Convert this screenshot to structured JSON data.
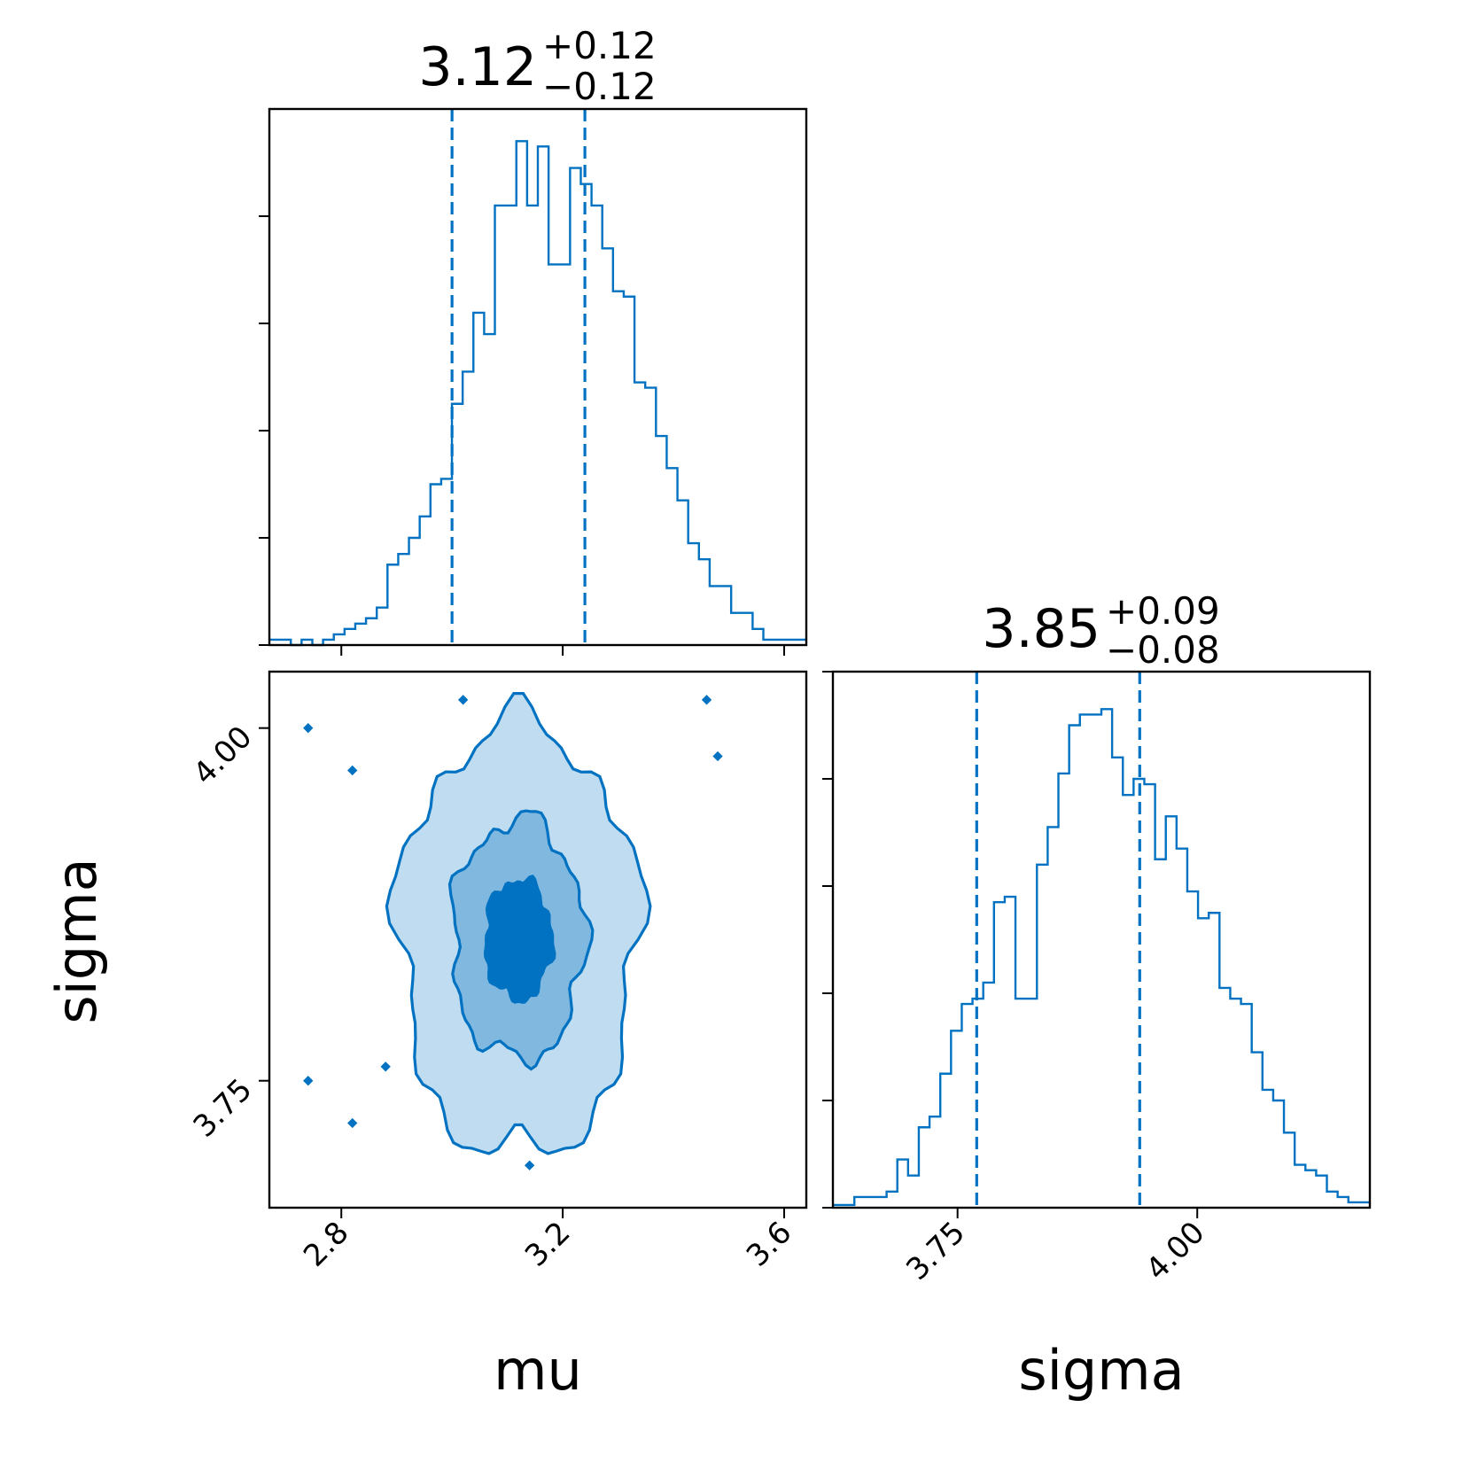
{
  "colors": {
    "primary": "#0072c1",
    "fill_outer": "#bfdcf0",
    "fill_middle": "#80b8df",
    "fill_inner": "#0072c1",
    "axis": "#000000",
    "background": "#ffffff"
  },
  "chart_data": {
    "type": "corner",
    "parameters": [
      "mu",
      "sigma"
    ],
    "panels": [
      {
        "id": "mu-hist",
        "type": "histogram",
        "parameter": "mu",
        "title": {
          "value": "3.12",
          "plus": "+0.12",
          "minus": "−0.12"
        },
        "xlim": [
          2.67,
          3.64
        ],
        "ylim": [
          0,
          1.0
        ],
        "y_ticks": [
          0,
          0.2,
          0.4,
          0.6,
          0.8
        ],
        "x_ticks": [
          2.8,
          3.2,
          3.6
        ],
        "quantile_lines": [
          3.0,
          3.24
        ],
        "bin_edges_start": 2.67,
        "bin_width": 0.0194,
        "counts": [
          0.01,
          0.01,
          0,
          0.01,
          0,
          0.01,
          0.02,
          0.03,
          0.04,
          0.05,
          0.07,
          0.15,
          0.17,
          0.2,
          0.24,
          0.3,
          0.31,
          0.45,
          0.51,
          0.62,
          0.58,
          0.82,
          0.82,
          0.94,
          0.82,
          0.93,
          0.71,
          0.71,
          0.89,
          0.86,
          0.82,
          0.74,
          0.66,
          0.65,
          0.49,
          0.48,
          0.39,
          0.33,
          0.27,
          0.19,
          0.16,
          0.11,
          0.11,
          0.06,
          0.06,
          0.03,
          0.01,
          0.01,
          0.01,
          0.01
        ]
      },
      {
        "id": "sigma-hist",
        "type": "histogram",
        "parameter": "sigma",
        "title": {
          "value": "3.85",
          "plus": "+0.09",
          "minus": "−0.08"
        },
        "xlim": [
          3.62,
          4.18
        ],
        "ylim": [
          0,
          1.0
        ],
        "y_ticks": [
          0,
          0.2,
          0.4,
          0.6,
          0.8,
          1.0
        ],
        "x_ticks": [
          3.75,
          4.0
        ],
        "x_tick_labels": [
          "3.75",
          "4.00"
        ],
        "quantile_lines": [
          3.77,
          3.94
        ],
        "bin_edges_start": 3.62,
        "bin_width": 0.0112,
        "counts": [
          0.005,
          0.005,
          0.02,
          0.02,
          0.02,
          0.03,
          0.09,
          0.06,
          0.15,
          0.17,
          0.25,
          0.33,
          0.38,
          0.39,
          0.42,
          0.57,
          0.58,
          0.39,
          0.39,
          0.64,
          0.71,
          0.81,
          0.9,
          0.92,
          0.92,
          0.93,
          0.84,
          0.77,
          0.8,
          0.79,
          0.65,
          0.73,
          0.67,
          0.59,
          0.54,
          0.55,
          0.41,
          0.39,
          0.38,
          0.29,
          0.22,
          0.2,
          0.14,
          0.08,
          0.07,
          0.06,
          0.03,
          0.02,
          0.01,
          0.01
        ]
      },
      {
        "id": "mu-sigma-contour",
        "type": "contour2d",
        "x_parameter": "mu",
        "y_parameter": "sigma",
        "xlim": [
          2.67,
          3.64
        ],
        "ylim": [
          3.66,
          4.04
        ],
        "x_ticks": [
          2.8,
          3.2,
          3.6
        ],
        "x_tick_labels": [
          "2.8",
          "3.2",
          "3.6"
        ],
        "y_ticks": [
          3.75,
          4.0
        ],
        "y_tick_labels": [
          "3.75",
          "4.00"
        ],
        "center": [
          3.12,
          3.85
        ],
        "spread": [
          0.12,
          0.085
        ],
        "contour_levels_sigma": [
          0.5,
          1.0,
          1.8
        ],
        "xlabel": "mu",
        "ylabel": "sigma"
      }
    ]
  }
}
